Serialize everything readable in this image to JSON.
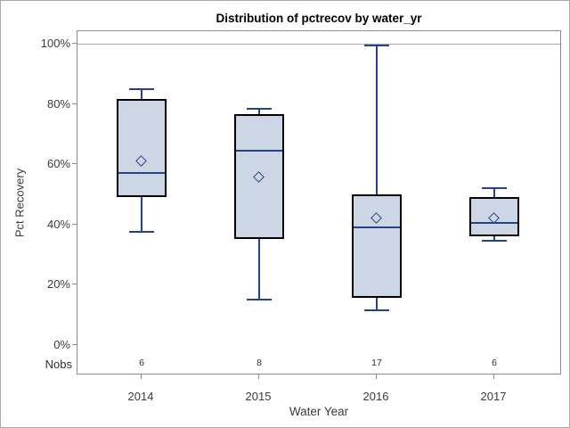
{
  "chart_data": {
    "type": "boxplot",
    "title": "Distribution of pctrecov by water_yr",
    "xlabel": "Water Year",
    "ylabel": "Pct Recovery",
    "nobs_label": "Nobs",
    "ylim": [
      0,
      100
    ],
    "yticks": [
      0,
      20,
      40,
      60,
      80,
      100
    ],
    "ytick_suffix": "%",
    "grid": "single horizontal reference line at 100%",
    "legend": "none",
    "categories": [
      "2014",
      "2015",
      "2016",
      "2017"
    ],
    "series": [
      {
        "category": "2014",
        "whisker_low": 37.5,
        "q1": 49,
        "median": 57,
        "q3": 81.5,
        "whisker_high": 85,
        "mean": 61,
        "nobs": "6"
      },
      {
        "category": "2015",
        "whisker_low": 15,
        "q1": 35,
        "median": 64.5,
        "q3": 76.5,
        "whisker_high": 78.5,
        "mean": 55.5,
        "nobs": "8"
      },
      {
        "category": "2016",
        "whisker_low": 11.5,
        "q1": 15.5,
        "median": 39,
        "q3": 50,
        "whisker_high": 99.5,
        "mean": 42,
        "nobs": "17"
      },
      {
        "category": "2017",
        "whisker_low": 34.5,
        "q1": 36,
        "median": 40.5,
        "q3": 49,
        "whisker_high": 52,
        "mean": 42,
        "nobs": "6"
      }
    ],
    "colors": {
      "box_fill": "#ccd6e4",
      "box_border": "#000000",
      "whisker": "#26428b",
      "median": "#26428b",
      "mean_marker": "#26428b",
      "gridline": "#a8a8a8",
      "axis_line": "#8c8c8c",
      "title_color": "#000000",
      "text_color": "#3a3a3a"
    }
  }
}
